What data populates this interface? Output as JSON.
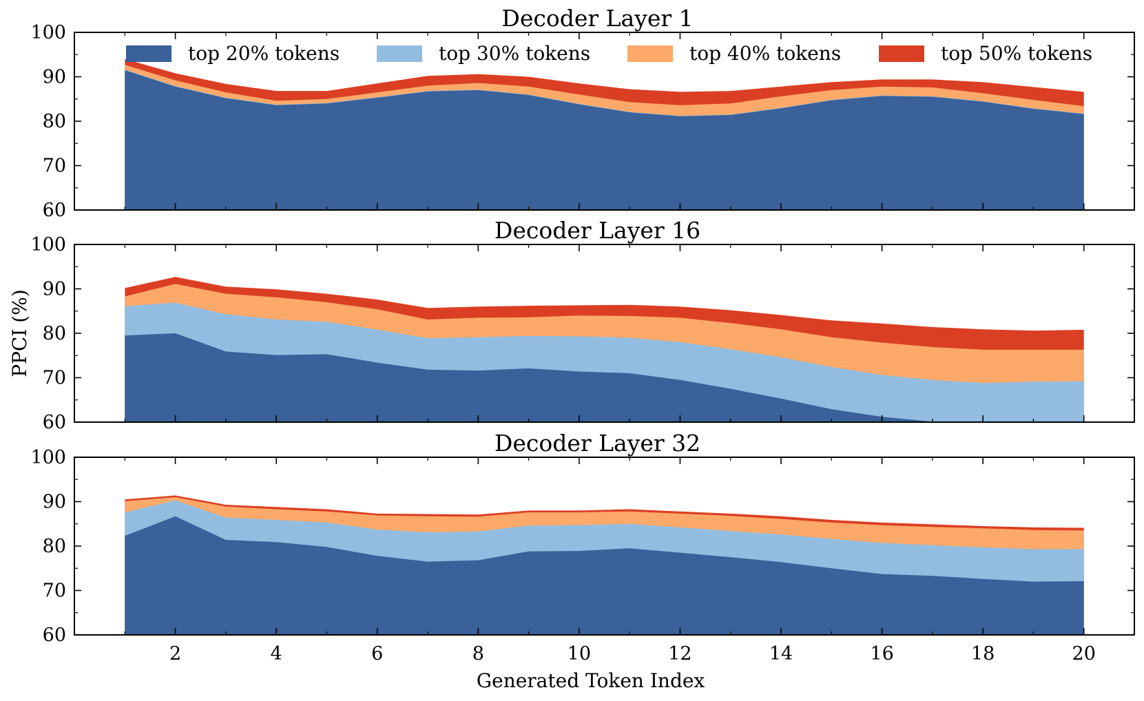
{
  "chart_data": {
    "type": "area",
    "stacked": true,
    "xlabel": "Generated Token Index",
    "ylabel": "PPCI (%)",
    "x": [
      1,
      2,
      3,
      4,
      5,
      6,
      7,
      8,
      9,
      10,
      11,
      12,
      13,
      14,
      15,
      16,
      17,
      18,
      19,
      20
    ],
    "x_ticks": [
      2,
      4,
      6,
      8,
      10,
      12,
      14,
      16,
      18,
      20
    ],
    "y_ticks": [
      60,
      70,
      80,
      90,
      100
    ],
    "ylim": [
      60,
      100
    ],
    "xlim": [
      0,
      21
    ],
    "legend": {
      "placement": "top",
      "entries": [
        "top 20% tokens",
        "top 30% tokens",
        "top 40% tokens",
        "top 50% tokens"
      ]
    },
    "colors": [
      "#3a6199",
      "#92bde0",
      "#fca96a",
      "#db3f23"
    ],
    "panels": [
      {
        "title": "Decoder Layer 1",
        "series": [
          {
            "name": "top 20% tokens",
            "values": [
              91.5,
              87.8,
              85.2,
              83.6,
              84.0,
              85.3,
              86.7,
              87.0,
              85.9,
              83.8,
              82.0,
              81.1,
              81.4,
              82.9,
              84.7,
              85.7,
              85.5,
              84.4,
              82.8,
              81.6
            ]
          },
          {
            "name": "top 30% tokens",
            "values": [
              91.6,
              87.9,
              85.3,
              83.7,
              84.1,
              85.4,
              86.8,
              87.1,
              86.0,
              83.9,
              82.1,
              81.2,
              81.5,
              83.0,
              84.8,
              85.8,
              85.6,
              84.5,
              82.9,
              81.7
            ]
          },
          {
            "name": "top 40% tokens",
            "values": [
              92.7,
              89.2,
              86.5,
              84.6,
              85.0,
              86.5,
              88.0,
              88.6,
              87.8,
              86.0,
              84.3,
              83.6,
              84.0,
              85.6,
              87.0,
              87.8,
              87.6,
              86.3,
              84.8,
              83.4
            ]
          },
          {
            "name": "top 50% tokens",
            "values": [
              94.0,
              90.8,
              88.4,
              86.8,
              86.8,
              88.5,
              90.2,
              90.6,
              90.0,
              88.5,
              87.2,
              86.6,
              86.8,
              87.8,
              88.8,
              89.4,
              89.4,
              88.8,
              87.7,
              86.6
            ]
          }
        ]
      },
      {
        "title": "Decoder Layer 16",
        "series": [
          {
            "name": "top 20% tokens",
            "values": [
              79.5,
              80.0,
              75.9,
              75.1,
              75.3,
              73.4,
              71.8,
              71.6,
              72.1,
              71.4,
              71.0,
              69.5,
              67.5,
              65.3,
              62.9,
              61.2,
              60.1,
              59.6,
              59.2,
              59.0
            ]
          },
          {
            "name": "top 30% tokens",
            "values": [
              86.1,
              86.9,
              84.3,
              83.1,
              82.6,
              80.8,
              78.9,
              79.1,
              79.4,
              79.3,
              79.0,
              78.0,
              76.4,
              74.6,
              72.4,
              70.6,
              69.5,
              68.8,
              69.1,
              69.2
            ]
          },
          {
            "name": "top 40% tokens",
            "values": [
              88.3,
              91.1,
              88.9,
              88.1,
              87.0,
              85.4,
              83.1,
              83.5,
              83.6,
              84.0,
              83.9,
              83.5,
              82.3,
              80.9,
              79.1,
              77.9,
              76.9,
              76.3,
              76.3,
              76.3
            ]
          },
          {
            "name": "top 50% tokens",
            "values": [
              90.2,
              92.7,
              90.5,
              89.9,
              88.9,
              87.6,
              85.7,
              86.0,
              86.2,
              86.3,
              86.4,
              86.0,
              85.2,
              84.1,
              82.9,
              82.2,
              81.4,
              80.9,
              80.6,
              80.8
            ]
          }
        ]
      },
      {
        "title": "Decoder Layer 32",
        "series": [
          {
            "name": "top 20% tokens",
            "values": [
              82.3,
              86.7,
              81.4,
              80.9,
              79.8,
              77.8,
              76.5,
              76.8,
              78.8,
              78.9,
              79.5,
              78.5,
              77.5,
              76.4,
              75.0,
              73.7,
              73.3,
              72.6,
              72.0,
              72.1
            ]
          },
          {
            "name": "top 30% tokens",
            "values": [
              87.6,
              90.3,
              86.4,
              85.9,
              85.3,
              83.7,
              83.1,
              83.3,
              84.6,
              84.7,
              85.0,
              84.2,
              83.4,
              82.6,
              81.6,
              80.7,
              80.2,
              79.7,
              79.3,
              79.3
            ]
          },
          {
            "name": "top 40% tokens",
            "values": [
              90.1,
              91.0,
              88.9,
              88.3,
              87.8,
              86.9,
              86.7,
              86.6,
              87.6,
              87.6,
              87.8,
              87.3,
              86.8,
              86.1,
              85.3,
              84.7,
              84.3,
              84.0,
              83.6,
              83.5
            ]
          },
          {
            "name": "top 50% tokens",
            "values": [
              90.5,
              91.4,
              89.3,
              88.8,
              88.3,
              87.3,
              87.2,
              87.1,
              88.0,
              88.0,
              88.3,
              87.8,
              87.3,
              86.7,
              85.9,
              85.3,
              84.9,
              84.5,
              84.2,
              84.1
            ]
          }
        ]
      }
    ]
  }
}
